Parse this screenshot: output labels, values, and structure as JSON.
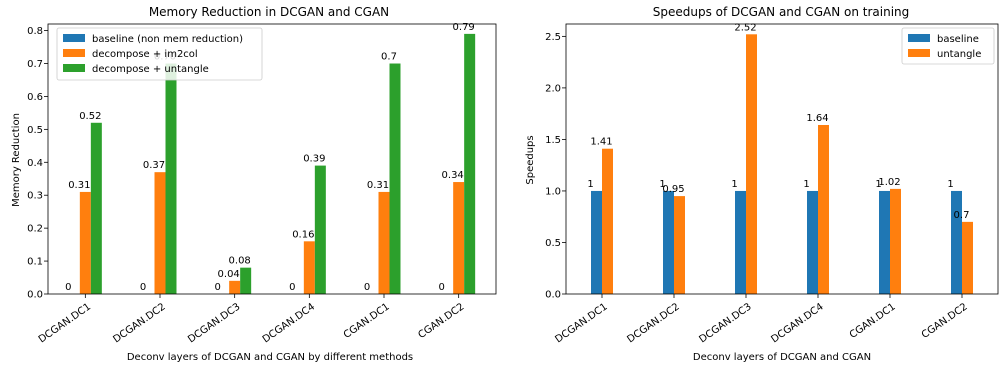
{
  "chart_data": [
    {
      "type": "bar",
      "title": "Memory Reduction in DCGAN and CGAN",
      "xlabel": "Deconv layers of DCGAN and CGAN by different methods",
      "ylabel": "Memory Reduction",
      "ylim": [
        0,
        0.82
      ],
      "yticks": [
        "0.0",
        "0.1",
        "0.2",
        "0.3",
        "0.4",
        "0.5",
        "0.6",
        "0.7",
        "0.8"
      ],
      "grid": false,
      "legend_position": "top-left",
      "categories": [
        "DCGAN.DC1",
        "DCGAN.DC2",
        "DCGAN.DC3",
        "DCGAN.DC4",
        "CGAN.DC1",
        "CGAN.DC2"
      ],
      "series": [
        {
          "name": "baseline (non mem reduction)",
          "color": "#1f77b4",
          "values": [
            0,
            0,
            0,
            0,
            0,
            0
          ],
          "labels": [
            "0",
            "0",
            "0",
            "0",
            "0",
            "0"
          ]
        },
        {
          "name": "decompose + im2col",
          "color": "#ff7f0e",
          "values": [
            0.31,
            0.37,
            0.04,
            0.16,
            0.31,
            0.34
          ],
          "labels": [
            "0.31",
            "0.37",
            "0.04",
            "0.16",
            "0.31",
            "0.34"
          ]
        },
        {
          "name": "decompose + untangle",
          "color": "#2ca02c",
          "values": [
            0.52,
            0.7,
            0.08,
            0.39,
            0.7,
            0.79
          ],
          "labels": [
            "0.52",
            "0.70",
            "0.08",
            "0.39",
            "0.7",
            "0.79"
          ]
        }
      ]
    },
    {
      "type": "bar",
      "title": "Speedups of DCGAN and CGAN on training",
      "xlabel": "Deconv layers of DCGAN and CGAN",
      "ylabel": "Speedups",
      "ylim": [
        0,
        2.62
      ],
      "yticks": [
        "0.0",
        "0.5",
        "1.0",
        "1.5",
        "2.0",
        "2.5"
      ],
      "grid": false,
      "legend_position": "top-right",
      "categories": [
        "DCGAN.DC1",
        "DCGAN.DC2",
        "DCGAN.DC3",
        "DCGAN.DC4",
        "CGAN.DC1",
        "CGAN.DC2"
      ],
      "series": [
        {
          "name": "baseline",
          "color": "#1f77b4",
          "values": [
            1,
            1,
            1,
            1,
            1,
            1
          ],
          "labels": [
            "1",
            "1",
            "1",
            "1",
            "1",
            "1"
          ]
        },
        {
          "name": "untangle",
          "color": "#ff7f0e",
          "values": [
            1.41,
            0.95,
            2.52,
            1.64,
            1.02,
            0.7
          ],
          "labels": [
            "1.41",
            "0.95",
            "2.52",
            "1.64",
            "1.02",
            "0.7"
          ]
        }
      ]
    }
  ]
}
